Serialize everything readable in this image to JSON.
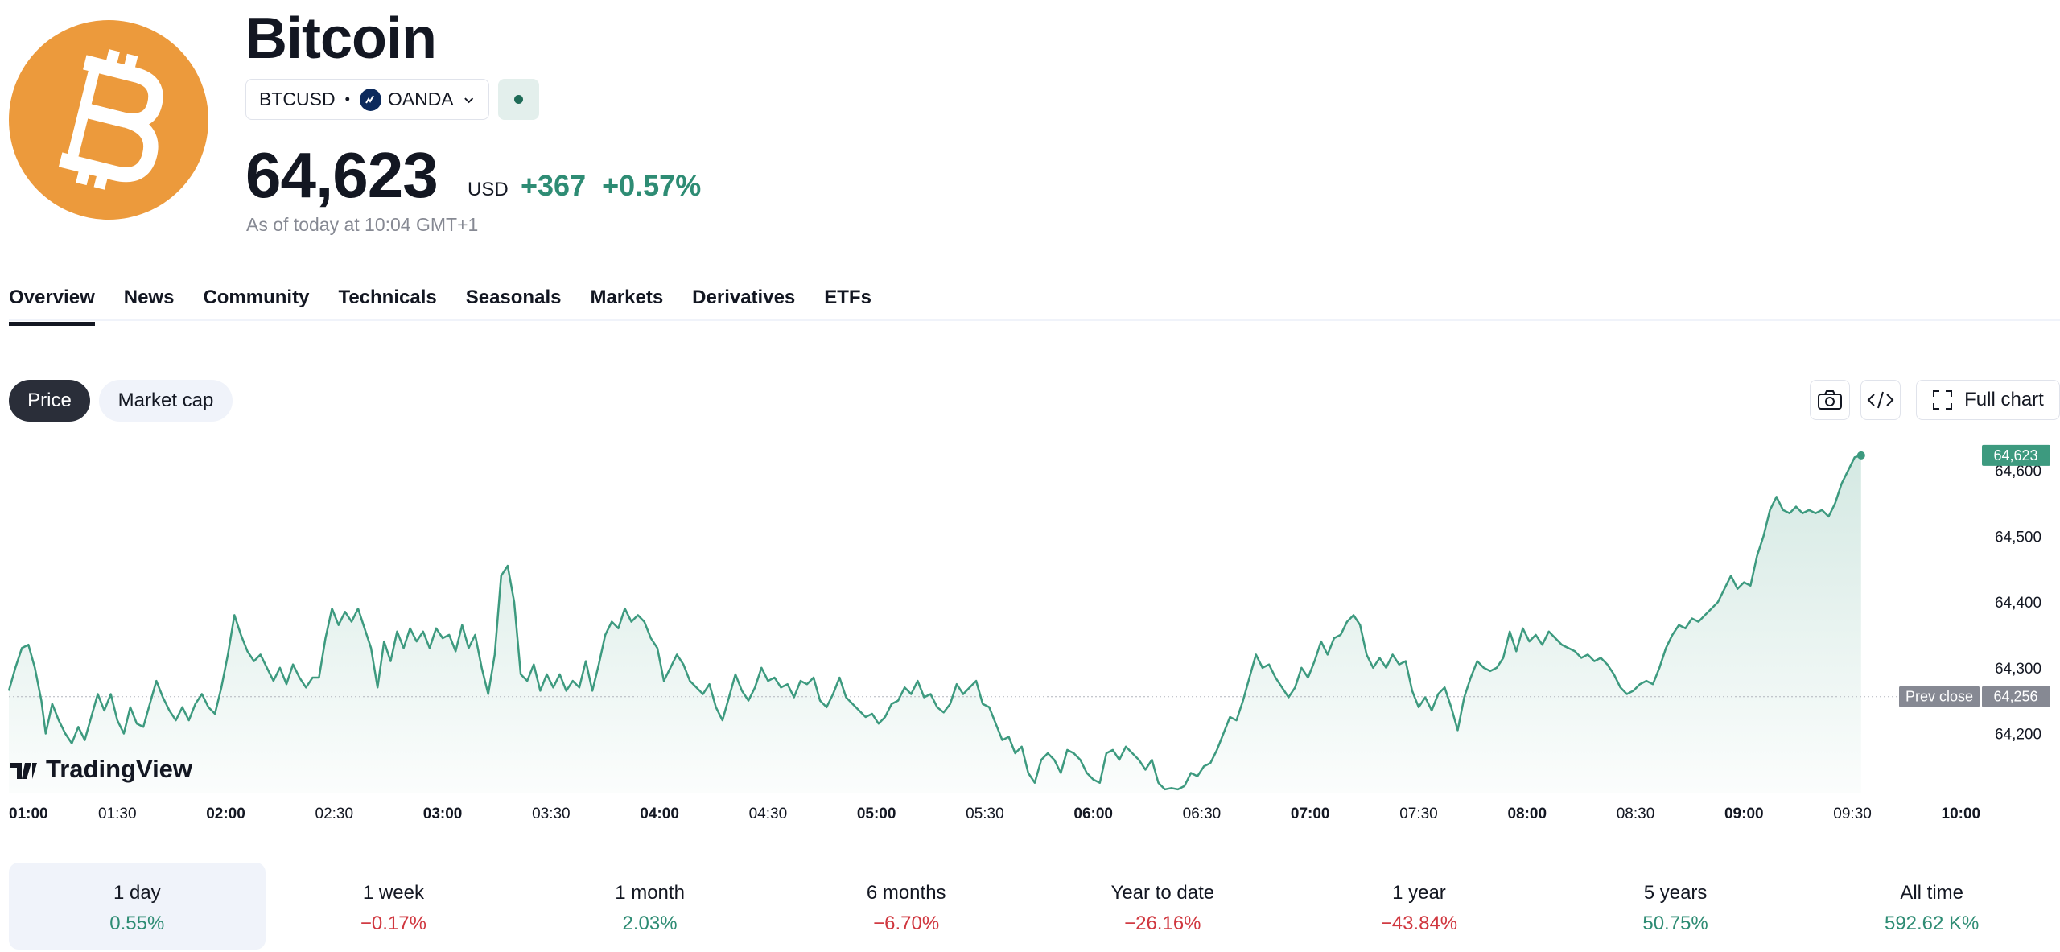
{
  "header": {
    "title": "Bitcoin",
    "ticker": "BTCUSD",
    "separator": "•",
    "exchange": "OANDA",
    "price": "64,623",
    "currency": "USD",
    "change": "+367",
    "change_pct": "+0.57%",
    "as_of": "As of today at 10:04 GMT+1"
  },
  "tabs": [
    "Overview",
    "News",
    "Community",
    "Technicals",
    "Seasonals",
    "Markets",
    "Derivatives",
    "ETFs"
  ],
  "chart_controls": {
    "price_label": "Price",
    "market_cap_label": "Market cap",
    "full_chart_label": "Full chart"
  },
  "chart_data": {
    "type": "area",
    "x_ticks": [
      {
        "label": "01:00",
        "bold": true
      },
      {
        "label": "01:30",
        "bold": false
      },
      {
        "label": "02:00",
        "bold": true
      },
      {
        "label": "02:30",
        "bold": false
      },
      {
        "label": "03:00",
        "bold": true
      },
      {
        "label": "03:30",
        "bold": false
      },
      {
        "label": "04:00",
        "bold": true
      },
      {
        "label": "04:30",
        "bold": false
      },
      {
        "label": "05:00",
        "bold": true
      },
      {
        "label": "05:30",
        "bold": false
      },
      {
        "label": "06:00",
        "bold": true
      },
      {
        "label": "06:30",
        "bold": false
      },
      {
        "label": "07:00",
        "bold": true
      },
      {
        "label": "07:30",
        "bold": false
      },
      {
        "label": "08:00",
        "bold": true
      },
      {
        "label": "08:30",
        "bold": false
      },
      {
        "label": "09:00",
        "bold": true
      },
      {
        "label": "09:30",
        "bold": false
      },
      {
        "label": "10:00",
        "bold": true
      }
    ],
    "y_ticks": [
      64200,
      64300,
      64400,
      64500,
      64600
    ],
    "y_tick_labels": [
      "64,200",
      "64,300",
      "64,400",
      "64,500",
      "64,600"
    ],
    "ylim": [
      64110,
      64640
    ],
    "x_hours_range": [
      1.0,
      10.06
    ],
    "prev_close": 64256,
    "prev_close_label": "Prev close",
    "prev_close_value_label": "64,256",
    "last_value_label": "64,623",
    "watermark": "TradingView",
    "line_color": "#3d9a7f",
    "points": [
      [
        1.0,
        64265
      ],
      [
        1.03,
        64300
      ],
      [
        1.06,
        64330
      ],
      [
        1.09,
        64335
      ],
      [
        1.12,
        64300
      ],
      [
        1.15,
        64250
      ],
      [
        1.17,
        64200
      ],
      [
        1.2,
        64245
      ],
      [
        1.23,
        64220
      ],
      [
        1.26,
        64200
      ],
      [
        1.29,
        64185
      ],
      [
        1.32,
        64210
      ],
      [
        1.35,
        64190
      ],
      [
        1.38,
        64225
      ],
      [
        1.41,
        64260
      ],
      [
        1.44,
        64235
      ],
      [
        1.47,
        64260
      ],
      [
        1.5,
        64220
      ],
      [
        1.53,
        64200
      ],
      [
        1.56,
        64240
      ],
      [
        1.59,
        64215
      ],
      [
        1.62,
        64210
      ],
      [
        1.65,
        64245
      ],
      [
        1.68,
        64280
      ],
      [
        1.71,
        64255
      ],
      [
        1.74,
        64235
      ],
      [
        1.77,
        64220
      ],
      [
        1.8,
        64240
      ],
      [
        1.83,
        64220
      ],
      [
        1.86,
        64245
      ],
      [
        1.89,
        64260
      ],
      [
        1.92,
        64240
      ],
      [
        1.95,
        64230
      ],
      [
        1.98,
        64270
      ],
      [
        2.01,
        64320
      ],
      [
        2.04,
        64380
      ],
      [
        2.07,
        64350
      ],
      [
        2.1,
        64325
      ],
      [
        2.13,
        64310
      ],
      [
        2.16,
        64320
      ],
      [
        2.19,
        64300
      ],
      [
        2.22,
        64280
      ],
      [
        2.25,
        64300
      ],
      [
        2.28,
        64275
      ],
      [
        2.31,
        64305
      ],
      [
        2.34,
        64285
      ],
      [
        2.37,
        64270
      ],
      [
        2.4,
        64285
      ],
      [
        2.43,
        64285
      ],
      [
        2.46,
        64345
      ],
      [
        2.49,
        64390
      ],
      [
        2.52,
        64365
      ],
      [
        2.55,
        64385
      ],
      [
        2.58,
        64370
      ],
      [
        2.61,
        64390
      ],
      [
        2.64,
        64360
      ],
      [
        2.67,
        64330
      ],
      [
        2.7,
        64270
      ],
      [
        2.73,
        64340
      ],
      [
        2.76,
        64310
      ],
      [
        2.79,
        64355
      ],
      [
        2.82,
        64330
      ],
      [
        2.85,
        64360
      ],
      [
        2.88,
        64340
      ],
      [
        2.91,
        64355
      ],
      [
        2.94,
        64330
      ],
      [
        2.97,
        64360
      ],
      [
        3.0,
        64345
      ],
      [
        3.03,
        64350
      ],
      [
        3.06,
        64325
      ],
      [
        3.09,
        64365
      ],
      [
        3.12,
        64330
      ],
      [
        3.15,
        64350
      ],
      [
        3.18,
        64300
      ],
      [
        3.21,
        64260
      ],
      [
        3.24,
        64320
      ],
      [
        3.27,
        64440
      ],
      [
        3.3,
        64455
      ],
      [
        3.33,
        64400
      ],
      [
        3.36,
        64290
      ],
      [
        3.39,
        64280
      ],
      [
        3.42,
        64305
      ],
      [
        3.45,
        64265
      ],
      [
        3.48,
        64290
      ],
      [
        3.51,
        64270
      ],
      [
        3.54,
        64290
      ],
      [
        3.57,
        64265
      ],
      [
        3.6,
        64280
      ],
      [
        3.63,
        64270
      ],
      [
        3.66,
        64310
      ],
      [
        3.69,
        64265
      ],
      [
        3.72,
        64305
      ],
      [
        3.75,
        64350
      ],
      [
        3.78,
        64370
      ],
      [
        3.81,
        64360
      ],
      [
        3.84,
        64390
      ],
      [
        3.87,
        64370
      ],
      [
        3.9,
        64380
      ],
      [
        3.93,
        64370
      ],
      [
        3.96,
        64345
      ],
      [
        3.99,
        64330
      ],
      [
        4.02,
        64280
      ],
      [
        4.05,
        64300
      ],
      [
        4.08,
        64320
      ],
      [
        4.11,
        64305
      ],
      [
        4.14,
        64280
      ],
      [
        4.17,
        64270
      ],
      [
        4.2,
        64260
      ],
      [
        4.23,
        64275
      ],
      [
        4.26,
        64240
      ],
      [
        4.29,
        64220
      ],
      [
        4.32,
        64255
      ],
      [
        4.35,
        64290
      ],
      [
        4.38,
        64265
      ],
      [
        4.41,
        64250
      ],
      [
        4.44,
        64270
      ],
      [
        4.47,
        64300
      ],
      [
        4.5,
        64280
      ],
      [
        4.53,
        64285
      ],
      [
        4.56,
        64270
      ],
      [
        4.59,
        64275
      ],
      [
        4.62,
        64255
      ],
      [
        4.65,
        64280
      ],
      [
        4.68,
        64275
      ],
      [
        4.71,
        64285
      ],
      [
        4.74,
        64250
      ],
      [
        4.77,
        64240
      ],
      [
        4.8,
        64260
      ],
      [
        4.83,
        64285
      ],
      [
        4.86,
        64255
      ],
      [
        4.89,
        64245
      ],
      [
        4.92,
        64235
      ],
      [
        4.95,
        64225
      ],
      [
        4.98,
        64230
      ],
      [
        5.01,
        64215
      ],
      [
        5.04,
        64225
      ],
      [
        5.07,
        64245
      ],
      [
        5.1,
        64250
      ],
      [
        5.13,
        64270
      ],
      [
        5.16,
        64260
      ],
      [
        5.19,
        64280
      ],
      [
        5.22,
        64255
      ],
      [
        5.25,
        64260
      ],
      [
        5.28,
        64240
      ],
      [
        5.31,
        64232
      ],
      [
        5.34,
        64245
      ],
      [
        5.37,
        64275
      ],
      [
        5.4,
        64260
      ],
      [
        5.43,
        64270
      ],
      [
        5.46,
        64280
      ],
      [
        5.49,
        64245
      ],
      [
        5.52,
        64240
      ],
      [
        5.55,
        64215
      ],
      [
        5.58,
        64190
      ],
      [
        5.61,
        64195
      ],
      [
        5.64,
        64170
      ],
      [
        5.67,
        64180
      ],
      [
        5.7,
        64140
      ],
      [
        5.73,
        64125
      ],
      [
        5.76,
        64160
      ],
      [
        5.79,
        64170
      ],
      [
        5.82,
        64160
      ],
      [
        5.85,
        64140
      ],
      [
        5.88,
        64175
      ],
      [
        5.91,
        64170
      ],
      [
        5.94,
        64160
      ],
      [
        5.97,
        64140
      ],
      [
        6.0,
        64130
      ],
      [
        6.03,
        64125
      ],
      [
        6.06,
        64170
      ],
      [
        6.09,
        64175
      ],
      [
        6.12,
        64160
      ],
      [
        6.15,
        64180
      ],
      [
        6.18,
        64170
      ],
      [
        6.21,
        64160
      ],
      [
        6.24,
        64145
      ],
      [
        6.27,
        64160
      ],
      [
        6.3,
        64125
      ],
      [
        6.33,
        64115
      ],
      [
        6.36,
        64117
      ],
      [
        6.39,
        64115
      ],
      [
        6.42,
        64120
      ],
      [
        6.45,
        64140
      ],
      [
        6.48,
        64135
      ],
      [
        6.51,
        64150
      ],
      [
        6.54,
        64155
      ],
      [
        6.57,
        64175
      ],
      [
        6.6,
        64200
      ],
      [
        6.63,
        64225
      ],
      [
        6.66,
        64220
      ],
      [
        6.69,
        64250
      ],
      [
        6.72,
        64285
      ],
      [
        6.75,
        64320
      ],
      [
        6.78,
        64300
      ],
      [
        6.81,
        64305
      ],
      [
        6.84,
        64285
      ],
      [
        6.87,
        64270
      ],
      [
        6.9,
        64255
      ],
      [
        6.93,
        64270
      ],
      [
        6.96,
        64300
      ],
      [
        6.99,
        64285
      ],
      [
        7.02,
        64310
      ],
      [
        7.05,
        64340
      ],
      [
        7.08,
        64320
      ],
      [
        7.11,
        64345
      ],
      [
        7.14,
        64350
      ],
      [
        7.17,
        64370
      ],
      [
        7.2,
        64380
      ],
      [
        7.23,
        64365
      ],
      [
        7.26,
        64320
      ],
      [
        7.29,
        64300
      ],
      [
        7.32,
        64315
      ],
      [
        7.35,
        64300
      ],
      [
        7.38,
        64320
      ],
      [
        7.41,
        64305
      ],
      [
        7.44,
        64310
      ],
      [
        7.47,
        64265
      ],
      [
        7.5,
        64240
      ],
      [
        7.53,
        64255
      ],
      [
        7.56,
        64235
      ],
      [
        7.59,
        64260
      ],
      [
        7.62,
        64270
      ],
      [
        7.65,
        64240
      ],
      [
        7.68,
        64205
      ],
      [
        7.71,
        64255
      ],
      [
        7.74,
        64285
      ],
      [
        7.77,
        64310
      ],
      [
        7.8,
        64300
      ],
      [
        7.83,
        64295
      ],
      [
        7.86,
        64300
      ],
      [
        7.89,
        64315
      ],
      [
        7.92,
        64355
      ],
      [
        7.95,
        64325
      ],
      [
        7.98,
        64360
      ],
      [
        8.01,
        64340
      ],
      [
        8.04,
        64350
      ],
      [
        8.07,
        64335
      ],
      [
        8.1,
        64355
      ],
      [
        8.13,
        64345
      ],
      [
        8.16,
        64335
      ],
      [
        8.19,
        64330
      ],
      [
        8.22,
        64325
      ],
      [
        8.25,
        64315
      ],
      [
        8.28,
        64320
      ],
      [
        8.31,
        64310
      ],
      [
        8.34,
        64315
      ],
      [
        8.37,
        64305
      ],
      [
        8.4,
        64290
      ],
      [
        8.43,
        64270
      ],
      [
        8.46,
        64260
      ],
      [
        8.49,
        64265
      ],
      [
        8.52,
        64275
      ],
      [
        8.55,
        64280
      ],
      [
        8.58,
        64275
      ],
      [
        8.61,
        64300
      ],
      [
        8.64,
        64330
      ],
      [
        8.67,
        64350
      ],
      [
        8.7,
        64365
      ],
      [
        8.73,
        64360
      ],
      [
        8.76,
        64375
      ],
      [
        8.79,
        64370
      ],
      [
        8.82,
        64380
      ],
      [
        8.85,
        64390
      ],
      [
        8.88,
        64400
      ],
      [
        8.91,
        64420
      ],
      [
        8.94,
        64440
      ],
      [
        8.97,
        64420
      ],
      [
        9.0,
        64430
      ],
      [
        9.03,
        64425
      ],
      [
        9.06,
        64470
      ],
      [
        9.09,
        64500
      ],
      [
        9.12,
        64540
      ],
      [
        9.15,
        64560
      ],
      [
        9.18,
        64540
      ],
      [
        9.21,
        64535
      ],
      [
        9.24,
        64545
      ],
      [
        9.27,
        64535
      ],
      [
        9.3,
        64540
      ],
      [
        9.33,
        64535
      ],
      [
        9.36,
        64540
      ],
      [
        9.39,
        64530
      ],
      [
        9.42,
        64550
      ],
      [
        9.45,
        64580
      ],
      [
        9.48,
        64600
      ],
      [
        9.51,
        64620
      ],
      [
        9.54,
        64623
      ]
    ]
  },
  "periods": [
    {
      "label": "1 day",
      "value": "0.55%",
      "up": true,
      "active": true
    },
    {
      "label": "1 week",
      "value": "−0.17%",
      "up": false,
      "active": false
    },
    {
      "label": "1 month",
      "value": "2.03%",
      "up": true,
      "active": false
    },
    {
      "label": "6 months",
      "value": "−6.70%",
      "up": false,
      "active": false
    },
    {
      "label": "Year to date",
      "value": "−26.16%",
      "up": false,
      "active": false
    },
    {
      "label": "1 year",
      "value": "−43.84%",
      "up": false,
      "active": false
    },
    {
      "label": "5 years",
      "value": "50.75%",
      "up": true,
      "active": false
    },
    {
      "label": "All time",
      "value": "592.62 K%",
      "up": true,
      "active": false
    }
  ],
  "colors": {
    "positive": "#2e8c74",
    "negative": "#d0373f",
    "brand": "#ec9a3c"
  }
}
